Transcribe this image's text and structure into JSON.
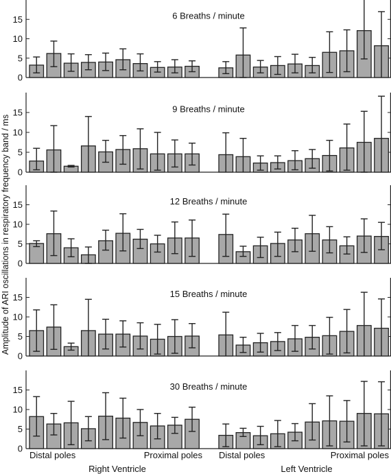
{
  "figure": {
    "ylabel": "Amplitude of ARI oscillations in respiratory frequency band / ms",
    "group_labels": [
      "Right Ventricle",
      "Left Ventricle"
    ],
    "pole_labels": {
      "right_start": "Distal poles",
      "right_end": "Proximal poles",
      "left_start": "Distal poles",
      "left_end": "Proximal poles"
    },
    "colors": {
      "bar_fill": "#a8a8a8",
      "bar_stroke": "#222222",
      "axis": "#222222"
    }
  },
  "chart_data": [
    {
      "type": "bar",
      "title": "6 Breaths / minute",
      "yticks": [
        0,
        5,
        10,
        15
      ],
      "ylim": [
        0,
        20
      ],
      "series": [
        {
          "name": "Right Ventricle",
          "values": [
            3.2,
            6.2,
            3.7,
            3.9,
            4.0,
            4.6,
            3.6,
            2.6,
            2.7,
            2.9
          ],
          "err_low": [
            1.2,
            2.8,
            1.6,
            2.0,
            1.8,
            2.0,
            1.7,
            1.4,
            1.2,
            1.5
          ],
          "err_high": [
            5.3,
            9.4,
            6.1,
            5.9,
            6.3,
            7.4,
            6.1,
            4.1,
            4.6,
            4.3
          ]
        },
        {
          "name": "Left Ventricle",
          "values": [
            2.5,
            5.8,
            2.7,
            3.1,
            3.5,
            3.1,
            6.5,
            6.9,
            12.1,
            8.2
          ],
          "err_low": [
            1.0,
            0.0,
            1.2,
            0.8,
            1.2,
            1.2,
            1.3,
            1.5,
            4.8,
            -0.2
          ],
          "err_high": [
            4.1,
            12.8,
            4.4,
            5.4,
            6.0,
            5.2,
            11.8,
            12.3,
            20.5,
            17.0
          ]
        }
      ]
    },
    {
      "type": "bar",
      "title": "9 Breaths / minute",
      "yticks": [
        0,
        5,
        10,
        15
      ],
      "ylim": [
        0,
        20
      ],
      "series": [
        {
          "name": "Right Ventricle",
          "values": [
            2.8,
            5.6,
            1.5,
            6.6,
            5.1,
            5.7,
            5.9,
            4.6,
            4.6,
            4.6
          ],
          "err_low": [
            0.6,
            0.0,
            1.3,
            -0.5,
            2.5,
            2.0,
            0.8,
            0.5,
            1.3,
            1.8
          ],
          "err_high": [
            6.0,
            11.7,
            1.7,
            14.0,
            8.0,
            9.2,
            10.9,
            10.0,
            8.1,
            7.3
          ]
        },
        {
          "name": "Left Ventricle",
          "values": [
            4.4,
            3.9,
            2.3,
            2.4,
            2.9,
            3.4,
            4.2,
            6.1,
            7.5,
            8.5
          ],
          "err_low": [
            -0.8,
            -0.6,
            0.5,
            0.8,
            0.6,
            1.0,
            0.3,
            0.5,
            0.0,
            -0.5
          ],
          "err_high": [
            9.9,
            8.5,
            4.1,
            4.1,
            5.4,
            5.7,
            8.0,
            12.1,
            15.3,
            19.1
          ]
        }
      ]
    },
    {
      "type": "bar",
      "title": "12 Breaths / minute",
      "yticks": [
        0,
        5,
        10,
        15
      ],
      "ylim": [
        0,
        20
      ],
      "series": [
        {
          "name": "Right Ventricle",
          "values": [
            5.1,
            7.6,
            4.0,
            2.2,
            5.8,
            7.7,
            6.2,
            5.0,
            6.5,
            6.5
          ],
          "err_low": [
            4.3,
            2.0,
            1.7,
            0.0,
            3.4,
            3.2,
            3.8,
            2.9,
            2.5,
            1.8
          ],
          "err_high": [
            5.8,
            13.4,
            6.3,
            4.2,
            8.5,
            12.7,
            8.7,
            7.2,
            10.6,
            11.1
          ]
        },
        {
          "name": "Left Ventricle",
          "values": [
            7.4,
            3.0,
            4.5,
            5.1,
            6.0,
            7.6,
            6.0,
            4.5,
            7.0,
            6.9
          ],
          "err_low": [
            1.8,
            1.8,
            1.5,
            1.8,
            3.0,
            3.1,
            2.7,
            2.4,
            2.8,
            3.5
          ],
          "err_high": [
            12.6,
            4.4,
            6.7,
            8.0,
            9.0,
            12.3,
            9.4,
            6.8,
            11.4,
            10.5
          ]
        }
      ]
    },
    {
      "type": "bar",
      "title": "15 Breaths / minute",
      "yticks": [
        0,
        5,
        10,
        15
      ],
      "ylim": [
        0,
        20
      ],
      "series": [
        {
          "name": "Right Ventricle",
          "values": [
            6.5,
            7.4,
            2.4,
            6.5,
            5.6,
            5.6,
            5.1,
            4.3,
            5.0,
            5.1
          ],
          "err_low": [
            1.2,
            1.7,
            1.5,
            -1.3,
            1.8,
            2.3,
            1.8,
            0.5,
            0.7,
            2.1
          ],
          "err_high": [
            11.8,
            13.1,
            3.3,
            14.5,
            9.4,
            9.0,
            8.5,
            8.1,
            9.3,
            8.3
          ]
        },
        {
          "name": "Left Ventricle",
          "values": [
            5.4,
            2.8,
            3.4,
            3.7,
            4.4,
            4.8,
            5.2,
            6.3,
            7.8,
            7.1
          ],
          "err_low": [
            -0.6,
            0.9,
            1.0,
            1.4,
            1.2,
            1.8,
            0.5,
            0.8,
            -0.7,
            -0.4
          ],
          "err_high": [
            11.2,
            4.8,
            5.8,
            6.0,
            7.8,
            7.8,
            9.9,
            11.9,
            16.3,
            14.6
          ]
        }
      ]
    },
    {
      "type": "bar",
      "title": "30 Breaths / minute",
      "yticks": [
        0,
        5,
        10,
        15
      ],
      "ylim": [
        0,
        20
      ],
      "series": [
        {
          "name": "Right Ventricle",
          "values": [
            8.2,
            6.3,
            6.6,
            5.1,
            8.3,
            7.8,
            6.7,
            5.8,
            6.0,
            7.5
          ],
          "err_low": [
            3.2,
            3.5,
            1.0,
            2.0,
            2.3,
            2.7,
            3.3,
            2.5,
            3.9,
            4.4
          ],
          "err_high": [
            13.3,
            9.0,
            12.1,
            8.2,
            14.3,
            12.9,
            10.0,
            9.0,
            8.0,
            10.6
          ]
        },
        {
          "name": "Left Ventricle",
          "values": [
            3.4,
            4.1,
            3.3,
            3.8,
            4.2,
            6.8,
            7.1,
            7.0,
            9.0,
            8.9
          ],
          "err_low": [
            0.5,
            3.1,
            1.0,
            0.5,
            2.0,
            2.2,
            0.7,
            1.7,
            0.7,
            0.7
          ],
          "err_high": [
            6.3,
            5.2,
            5.7,
            7.2,
            6.4,
            11.5,
            13.5,
            12.3,
            17.2,
            17.1
          ]
        }
      ]
    }
  ]
}
